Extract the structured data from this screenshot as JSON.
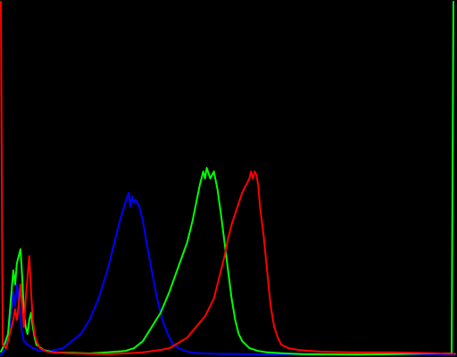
{
  "chart_data": {
    "type": "line",
    "title": "",
    "xlabel": "",
    "ylabel": "",
    "xlim": [
      0,
      256
    ],
    "ylim": [
      0,
      1
    ],
    "grid": false,
    "legend": "none",
    "background": "#000000",
    "series": [
      {
        "color": "#ff0000",
        "points": [
          [
            0,
            1.0
          ],
          [
            1,
            0.03
          ],
          [
            3,
            0.02
          ],
          [
            5,
            0.06
          ],
          [
            7,
            0.1
          ],
          [
            8,
            0.13
          ],
          [
            9,
            0.1
          ],
          [
            10,
            0.14
          ],
          [
            11,
            0.2
          ],
          [
            12,
            0.14
          ],
          [
            13,
            0.08
          ],
          [
            14,
            0.16
          ],
          [
            15,
            0.22
          ],
          [
            16,
            0.28
          ],
          [
            17,
            0.18
          ],
          [
            18,
            0.1
          ],
          [
            19,
            0.06
          ],
          [
            20,
            0.04
          ],
          [
            22,
            0.02
          ],
          [
            24,
            0.015
          ],
          [
            26,
            0.01
          ],
          [
            30,
            0.008
          ],
          [
            40,
            0.005
          ],
          [
            60,
            0.003
          ],
          [
            70,
            0.005
          ],
          [
            80,
            0.008
          ],
          [
            90,
            0.015
          ],
          [
            95,
            0.02
          ],
          [
            100,
            0.035
          ],
          [
            105,
            0.05
          ],
          [
            110,
            0.08
          ],
          [
            115,
            0.11
          ],
          [
            120,
            0.16
          ],
          [
            123,
            0.22
          ],
          [
            126,
            0.28
          ],
          [
            128,
            0.33
          ],
          [
            130,
            0.37
          ],
          [
            132,
            0.4
          ],
          [
            134,
            0.43
          ],
          [
            136,
            0.46
          ],
          [
            138,
            0.48
          ],
          [
            140,
            0.5
          ],
          [
            141,
            0.52
          ],
          [
            142,
            0.5
          ],
          [
            143,
            0.52
          ],
          [
            144,
            0.51
          ],
          [
            145,
            0.48
          ],
          [
            146,
            0.42
          ],
          [
            148,
            0.34
          ],
          [
            150,
            0.24
          ],
          [
            152,
            0.14
          ],
          [
            154,
            0.08
          ],
          [
            156,
            0.05
          ],
          [
            158,
            0.03
          ],
          [
            162,
            0.02
          ],
          [
            168,
            0.015
          ],
          [
            180,
            0.01
          ],
          [
            200,
            0.008
          ],
          [
            220,
            0.008
          ],
          [
            240,
            0.006
          ],
          [
            256,
            0.004
          ]
        ]
      },
      {
        "color": "#00ff00",
        "points": [
          [
            0,
            0.01
          ],
          [
            2,
            0.03
          ],
          [
            4,
            0.06
          ],
          [
            6,
            0.18
          ],
          [
            7,
            0.24
          ],
          [
            8,
            0.2
          ],
          [
            9,
            0.26
          ],
          [
            10,
            0.28
          ],
          [
            11,
            0.3
          ],
          [
            12,
            0.22
          ],
          [
            13,
            0.12
          ],
          [
            14,
            0.08
          ],
          [
            15,
            0.06
          ],
          [
            16,
            0.1
          ],
          [
            17,
            0.12
          ],
          [
            18,
            0.08
          ],
          [
            19,
            0.05
          ],
          [
            20,
            0.03
          ],
          [
            24,
            0.015
          ],
          [
            30,
            0.008
          ],
          [
            50,
            0.005
          ],
          [
            60,
            0.008
          ],
          [
            65,
            0.01
          ],
          [
            70,
            0.012
          ],
          [
            75,
            0.02
          ],
          [
            80,
            0.04
          ],
          [
            85,
            0.08
          ],
          [
            90,
            0.12
          ],
          [
            95,
            0.18
          ],
          [
            100,
            0.25
          ],
          [
            105,
            0.32
          ],
          [
            108,
            0.38
          ],
          [
            110,
            0.43
          ],
          [
            112,
            0.48
          ],
          [
            114,
            0.52
          ],
          [
            115,
            0.5
          ],
          [
            116,
            0.53
          ],
          [
            118,
            0.5
          ],
          [
            120,
            0.52
          ],
          [
            122,
            0.47
          ],
          [
            124,
            0.4
          ],
          [
            126,
            0.32
          ],
          [
            128,
            0.24
          ],
          [
            130,
            0.16
          ],
          [
            132,
            0.1
          ],
          [
            134,
            0.06
          ],
          [
            136,
            0.04
          ],
          [
            140,
            0.02
          ],
          [
            145,
            0.012
          ],
          [
            150,
            0.008
          ],
          [
            160,
            0.005
          ],
          [
            170,
            0.003
          ],
          [
            200,
            0.002
          ],
          [
            220,
            0.003
          ],
          [
            240,
            0.005
          ],
          [
            250,
            0.005
          ],
          [
            254,
            0.005
          ],
          [
            255,
            1.0
          ]
        ]
      },
      {
        "color": "#0000ff",
        "points": [
          [
            0,
            0.0
          ],
          [
            3,
            0.02
          ],
          [
            5,
            0.08
          ],
          [
            7,
            0.18
          ],
          [
            8,
            0.14
          ],
          [
            9,
            0.2
          ],
          [
            10,
            0.16
          ],
          [
            11,
            0.1
          ],
          [
            12,
            0.06
          ],
          [
            13,
            0.04
          ],
          [
            15,
            0.03
          ],
          [
            18,
            0.02
          ],
          [
            22,
            0.012
          ],
          [
            28,
            0.012
          ],
          [
            35,
            0.02
          ],
          [
            40,
            0.04
          ],
          [
            45,
            0.06
          ],
          [
            50,
            0.1
          ],
          [
            55,
            0.16
          ],
          [
            60,
            0.24
          ],
          [
            64,
            0.32
          ],
          [
            67,
            0.38
          ],
          [
            70,
            0.43
          ],
          [
            72,
            0.46
          ],
          [
            73,
            0.42
          ],
          [
            74,
            0.45
          ],
          [
            75,
            0.43
          ],
          [
            76,
            0.44
          ],
          [
            78,
            0.42
          ],
          [
            80,
            0.38
          ],
          [
            82,
            0.32
          ],
          [
            85,
            0.24
          ],
          [
            88,
            0.16
          ],
          [
            91,
            0.1
          ],
          [
            94,
            0.06
          ],
          [
            97,
            0.03
          ],
          [
            100,
            0.02
          ],
          [
            105,
            0.01
          ],
          [
            110,
            0.006
          ],
          [
            120,
            0.004
          ],
          [
            140,
            0.003
          ],
          [
            170,
            0.002
          ],
          [
            200,
            0.002
          ],
          [
            256,
            0.002
          ]
        ]
      }
    ]
  }
}
